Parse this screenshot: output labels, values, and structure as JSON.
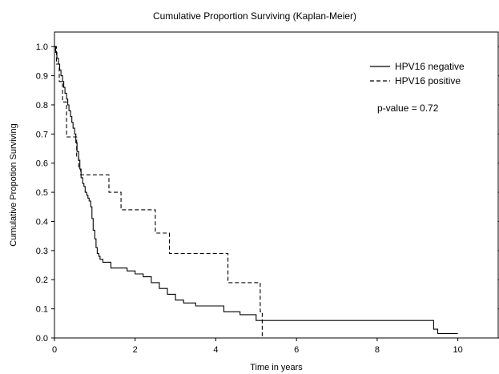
{
  "chart_data": {
    "type": "line",
    "title": "Cumulative Proportion Surviving (Kaplan-Meier)",
    "xlabel": "Time in years",
    "ylabel": "Cumulative Propotion Surviving",
    "xlim": [
      0,
      11
    ],
    "ylim": [
      0,
      1.05
    ],
    "xticks": [
      0,
      2,
      4,
      6,
      8,
      10
    ],
    "yticks": [
      0.0,
      0.1,
      0.2,
      0.3,
      0.4,
      0.5,
      0.6,
      0.7,
      0.8,
      0.9,
      1.0
    ],
    "grid": false,
    "legend_position": "top-right",
    "annotation": "p-value = 0.72",
    "series": [
      {
        "name": "HPV16 negative",
        "style": "solid",
        "color": "#000000",
        "x": [
          0,
          0.03,
          0.06,
          0.1,
          0.13,
          0.16,
          0.2,
          0.23,
          0.26,
          0.3,
          0.33,
          0.36,
          0.4,
          0.43,
          0.46,
          0.5,
          0.53,
          0.56,
          0.6,
          0.63,
          0.66,
          0.7,
          0.73,
          0.76,
          0.8,
          0.83,
          0.86,
          0.9,
          0.93,
          0.96,
          1.0,
          1.03,
          1.06,
          1.1,
          1.13,
          1.2,
          1.4,
          1.8,
          2.0,
          2.2,
          2.4,
          2.6,
          2.8,
          3.0,
          3.2,
          3.5,
          4.2,
          4.6,
          5.0,
          9.4,
          9.5,
          10.0
        ],
        "y": [
          1.0,
          0.98,
          0.96,
          0.94,
          0.92,
          0.9,
          0.88,
          0.86,
          0.84,
          0.82,
          0.8,
          0.78,
          0.76,
          0.74,
          0.72,
          0.7,
          0.67,
          0.64,
          0.61,
          0.58,
          0.55,
          0.53,
          0.52,
          0.5,
          0.49,
          0.48,
          0.47,
          0.45,
          0.41,
          0.37,
          0.34,
          0.31,
          0.29,
          0.28,
          0.27,
          0.26,
          0.24,
          0.23,
          0.22,
          0.21,
          0.19,
          0.17,
          0.15,
          0.13,
          0.12,
          0.11,
          0.09,
          0.08,
          0.06,
          0.03,
          0.015,
          0.015
        ]
      },
      {
        "name": "HPV16 positive",
        "style": "dashed",
        "color": "#000000",
        "x": [
          0,
          0.05,
          0.12,
          0.2,
          0.3,
          0.5,
          0.55,
          0.6,
          0.65,
          1.35,
          1.65,
          2.5,
          2.75,
          2.85,
          4.3,
          5.1,
          5.15
        ],
        "y": [
          1.0,
          0.94,
          0.88,
          0.81,
          0.69,
          0.69,
          0.62,
          0.58,
          0.56,
          0.5,
          0.44,
          0.36,
          0.36,
          0.29,
          0.19,
          0.09,
          0.0
        ]
      }
    ]
  }
}
